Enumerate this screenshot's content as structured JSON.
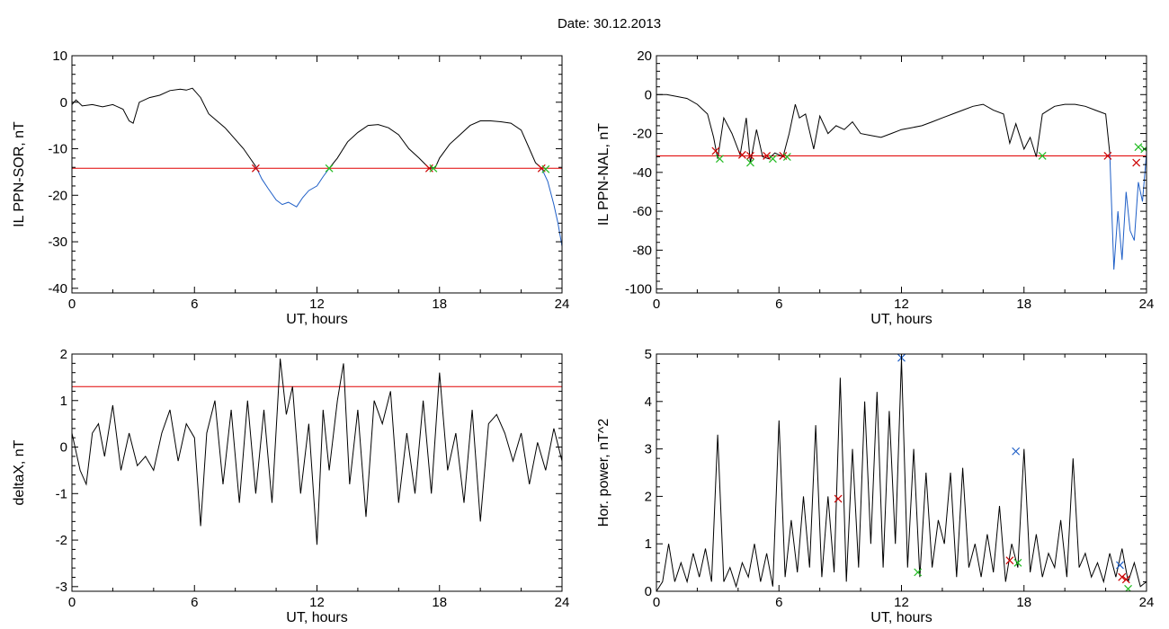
{
  "title": "Date:  30.12.2013",
  "chart_data": [
    {
      "type": "line",
      "id": "sor",
      "xlabel": "UT, hours",
      "ylabel": "IL PPN-SOR, nT",
      "xlim": [
        0,
        24
      ],
      "ylim": [
        -41,
        10
      ],
      "xticks": [
        0,
        6,
        12,
        18,
        24
      ],
      "yticks": [
        -40,
        -30,
        -20,
        -10,
        0,
        10
      ],
      "threshold": -14.2,
      "series": [
        {
          "color": "#000000",
          "x": [
            0,
            0.2,
            0.5,
            1,
            1.5,
            2,
            2.5,
            2.8,
            3,
            3.3,
            3.8,
            4.3,
            4.8,
            5.3,
            5.6,
            5.9,
            6.3,
            6.7,
            7.1,
            7.5,
            8,
            8.4,
            8.8,
            9
          ],
          "y": [
            -0.5,
            0.5,
            -0.8,
            -0.5,
            -1,
            -0.5,
            -1.5,
            -4,
            -4.5,
            0,
            1,
            1.5,
            2.5,
            2.8,
            2.6,
            3,
            1,
            -2.5,
            -4,
            -5.5,
            -8,
            -10,
            -12.5,
            -13.8
          ]
        },
        {
          "color": "#1f5fc7",
          "x": [
            9,
            9.3,
            9.6,
            10,
            10.3,
            10.6,
            11,
            11.3,
            11.6,
            12,
            12.3,
            12.6
          ],
          "y": [
            -13.8,
            -16.5,
            -18.5,
            -21,
            -22,
            -21.5,
            -22.5,
            -20.5,
            -19,
            -18,
            -16,
            -14.2
          ]
        },
        {
          "color": "#000000",
          "x": [
            12.6,
            13,
            13.5,
            14,
            14.5,
            15,
            15.5,
            16,
            16.5,
            17,
            17.5,
            17.8,
            18,
            18.5,
            19,
            19.5,
            20,
            20.5,
            21,
            21.5,
            22,
            22.4,
            22.7,
            23
          ],
          "y": [
            -14.2,
            -12,
            -8.5,
            -6.5,
            -5,
            -4.8,
            -5.5,
            -7,
            -10,
            -12,
            -14.2,
            -14,
            -12,
            -9,
            -7,
            -5,
            -4,
            -4,
            -4.2,
            -4.5,
            -6,
            -10,
            -13,
            -14.2
          ]
        },
        {
          "color": "#1f5fc7",
          "x": [
            23,
            23.3,
            23.6,
            23.8,
            24
          ],
          "y": [
            -14.2,
            -17,
            -22,
            -26,
            -31
          ]
        }
      ],
      "markers": [
        {
          "x": 9.0,
          "y": -14.2,
          "color": "#cc0000"
        },
        {
          "x": 12.6,
          "y": -14.2,
          "color": "#22bb22"
        },
        {
          "x": 17.5,
          "y": -14.2,
          "color": "#cc0000"
        },
        {
          "x": 17.7,
          "y": -14.2,
          "color": "#22bb22"
        },
        {
          "x": 23.0,
          "y": -14.2,
          "color": "#cc0000"
        },
        {
          "x": 23.2,
          "y": -14.4,
          "color": "#22bb22"
        }
      ]
    },
    {
      "type": "line",
      "id": "nal",
      "xlabel": "UT, hours",
      "ylabel": "IL PPN-NAL, nT",
      "xlim": [
        0,
        24
      ],
      "ylim": [
        -102,
        20
      ],
      "xticks": [
        0,
        6,
        12,
        18,
        24
      ],
      "yticks": [
        -100,
        -80,
        -60,
        -40,
        -20,
        0,
        20
      ],
      "threshold": -31.5,
      "series": [
        {
          "color": "#000000",
          "x": [
            0,
            0.5,
            1,
            1.5,
            2,
            2.5,
            2.8,
            3,
            3.3,
            3.7,
            4.1,
            4.4,
            4.6,
            4.9,
            5.2,
            5.5,
            5.8,
            6.2,
            6.5,
            6.8,
            7,
            7.3,
            7.7,
            8,
            8.4,
            8.8,
            9.2,
            9.6,
            10,
            10.5,
            11,
            11.5,
            12,
            12.5,
            13,
            13.5,
            14,
            14.5,
            15,
            15.5,
            16,
            16.5,
            17,
            17.3,
            17.6,
            18,
            18.3,
            18.6,
            18.9,
            19.2,
            19.5,
            20,
            20.5,
            21,
            21.5,
            22,
            22.2
          ],
          "y": [
            0,
            0,
            -1,
            -2,
            -5,
            -10,
            -22,
            -33,
            -12,
            -20,
            -31,
            -12,
            -35,
            -18,
            -32,
            -33,
            -30,
            -32,
            -20,
            -5,
            -12,
            -10,
            -28,
            -11,
            -20,
            -16,
            -18,
            -14,
            -20,
            -21,
            -22,
            -20,
            -18,
            -17,
            -16,
            -14,
            -12,
            -10,
            -8,
            -6,
            -5,
            -8,
            -10,
            -25,
            -15,
            -28,
            -22,
            -32,
            -10,
            -8,
            -6,
            -5,
            -5,
            -6,
            -8,
            -10,
            -30
          ]
        },
        {
          "color": "#1f5fc7",
          "x": [
            22.2,
            22.4,
            22.6,
            22.8,
            23,
            23.2,
            23.4,
            23.6,
            23.8,
            24
          ],
          "y": [
            -30,
            -90,
            -60,
            -85,
            -50,
            -70,
            -75,
            -45,
            -55,
            -30
          ]
        }
      ],
      "markers": [
        {
          "x": 2.9,
          "y": -29,
          "color": "#cc0000"
        },
        {
          "x": 3.1,
          "y": -33,
          "color": "#22bb22"
        },
        {
          "x": 4.2,
          "y": -31,
          "color": "#cc0000"
        },
        {
          "x": 4.6,
          "y": -31.5,
          "color": "#cc0000"
        },
        {
          "x": 4.6,
          "y": -35,
          "color": "#22bb22"
        },
        {
          "x": 5.4,
          "y": -31.5,
          "color": "#cc0000"
        },
        {
          "x": 5.7,
          "y": -33,
          "color": "#22bb22"
        },
        {
          "x": 6.2,
          "y": -31.5,
          "color": "#cc0000"
        },
        {
          "x": 6.4,
          "y": -32,
          "color": "#22bb22"
        },
        {
          "x": 18.9,
          "y": -31.5,
          "color": "#22bb22"
        },
        {
          "x": 22.1,
          "y": -31.5,
          "color": "#cc0000"
        },
        {
          "x": 23.5,
          "y": -35,
          "color": "#cc0000"
        },
        {
          "x": 23.6,
          "y": -27,
          "color": "#22bb22"
        },
        {
          "x": 23.9,
          "y": -28,
          "color": "#22bb22"
        }
      ]
    },
    {
      "type": "line",
      "id": "deltax",
      "xlabel": "UT, hours",
      "ylabel": "deltaX, nT",
      "xlim": [
        0,
        24
      ],
      "ylim": [
        -3.1,
        2.0
      ],
      "xticks": [
        0,
        6,
        12,
        18,
        24
      ],
      "yticks": [
        -3,
        -2,
        -1,
        0,
        1,
        2
      ],
      "threshold": 1.3,
      "series": [
        {
          "color": "#000000",
          "x": [
            0,
            0.4,
            0.7,
            1,
            1.3,
            1.6,
            2,
            2.4,
            2.8,
            3.2,
            3.6,
            4,
            4.4,
            4.8,
            5.2,
            5.6,
            6,
            6.3,
            6.6,
            7,
            7.4,
            7.8,
            8.2,
            8.6,
            9,
            9.4,
            9.8,
            10.2,
            10.5,
            10.8,
            11.2,
            11.6,
            12,
            12.3,
            12.6,
            13,
            13.3,
            13.6,
            14,
            14.4,
            14.8,
            15.2,
            15.6,
            16,
            16.4,
            16.8,
            17.2,
            17.6,
            18,
            18.4,
            18.8,
            19.2,
            19.6,
            20,
            20.4,
            20.8,
            21.2,
            21.6,
            22,
            22.4,
            22.8,
            23.2,
            23.6,
            24
          ],
          "y": [
            0.3,
            -0.5,
            -0.8,
            0.3,
            0.5,
            -0.2,
            0.9,
            -0.5,
            0.3,
            -0.4,
            -0.2,
            -0.5,
            0.3,
            0.8,
            -0.3,
            0.5,
            0.2,
            -1.7,
            0.3,
            1.0,
            -0.8,
            0.8,
            -1.2,
            1.0,
            -1.0,
            0.8,
            -1.2,
            1.9,
            0.7,
            1.3,
            -1.0,
            0.5,
            -2.1,
            0.8,
            -0.5,
            1.0,
            1.8,
            -0.8,
            0.8,
            -1.5,
            1.0,
            0.5,
            1.2,
            -1.2,
            0.3,
            -1.0,
            1.0,
            -1.0,
            1.6,
            -0.5,
            0.3,
            -1.2,
            0.8,
            -1.6,
            0.5,
            0.7,
            0.3,
            -0.3,
            0.3,
            -0.8,
            0.1,
            -0.5,
            0.4,
            -0.3
          ]
        }
      ],
      "markers": []
    },
    {
      "type": "line",
      "id": "power",
      "xlabel": "UT, hours",
      "ylabel": "Hor. power, nT^2",
      "xlim": [
        0,
        24
      ],
      "ylim": [
        0,
        5
      ],
      "xticks": [
        0,
        6,
        12,
        18,
        24
      ],
      "yticks": [
        0,
        1,
        2,
        3,
        4,
        5
      ],
      "series": [
        {
          "color": "#000000",
          "x": [
            0,
            0.3,
            0.6,
            0.9,
            1.2,
            1.5,
            1.8,
            2.1,
            2.4,
            2.7,
            3,
            3.3,
            3.6,
            3.9,
            4.2,
            4.5,
            4.8,
            5.1,
            5.4,
            5.7,
            6,
            6.3,
            6.6,
            6.9,
            7.2,
            7.5,
            7.8,
            8.1,
            8.4,
            8.7,
            9,
            9.3,
            9.6,
            9.9,
            10.2,
            10.5,
            10.8,
            11.1,
            11.4,
            11.7,
            12,
            12.3,
            12.6,
            12.9,
            13.2,
            13.5,
            13.8,
            14.1,
            14.4,
            14.7,
            15,
            15.3,
            15.6,
            15.9,
            16.2,
            16.5,
            16.8,
            17.1,
            17.4,
            17.7,
            18,
            18.3,
            18.6,
            18.9,
            19.2,
            19.5,
            19.8,
            20.1,
            20.4,
            20.7,
            21,
            21.3,
            21.6,
            21.9,
            22.2,
            22.5,
            22.8,
            23.1,
            23.4,
            23.7,
            24
          ],
          "y": [
            0,
            0.2,
            1.0,
            0.2,
            0.6,
            0.2,
            0.8,
            0.3,
            0.9,
            0.2,
            3.3,
            0.2,
            0.5,
            0.1,
            0.6,
            0.3,
            1.0,
            0.2,
            0.8,
            0.1,
            3.6,
            0.3,
            1.5,
            0.4,
            2.0,
            0.5,
            3.5,
            0.3,
            2.0,
            0.4,
            4.5,
            0.2,
            3.0,
            0.5,
            4.0,
            1.0,
            4.2,
            0.5,
            3.8,
            1.0,
            4.9,
            0.5,
            3.0,
            0.3,
            2.5,
            0.5,
            1.5,
            1.0,
            2.5,
            0.3,
            2.6,
            0.5,
            1.0,
            0.3,
            1.2,
            0.4,
            1.8,
            0.2,
            1.0,
            0.5,
            3.0,
            0.4,
            1.2,
            0.3,
            0.8,
            0.5,
            1.5,
            0.3,
            2.8,
            0.5,
            0.8,
            0.3,
            0.6,
            0.2,
            0.8,
            0.3,
            0.9,
            0.2,
            0.6,
            0.1,
            0.2
          ]
        }
      ],
      "markers": [
        {
          "x": 8.9,
          "y": 1.95,
          "color": "#cc0000"
        },
        {
          "x": 12.0,
          "y": 4.92,
          "color": "#1f5fc7"
        },
        {
          "x": 12.8,
          "y": 0.4,
          "color": "#22bb22"
        },
        {
          "x": 17.3,
          "y": 0.65,
          "color": "#cc0000"
        },
        {
          "x": 17.6,
          "y": 2.95,
          "color": "#1f5fc7"
        },
        {
          "x": 17.7,
          "y": 0.6,
          "color": "#22bb22"
        },
        {
          "x": 22.7,
          "y": 0.55,
          "color": "#1f5fc7"
        },
        {
          "x": 22.8,
          "y": 0.3,
          "color": "#cc0000"
        },
        {
          "x": 23.0,
          "y": 0.25,
          "color": "#cc0000"
        },
        {
          "x": 23.1,
          "y": 0.05,
          "color": "#22bb22"
        }
      ]
    }
  ]
}
